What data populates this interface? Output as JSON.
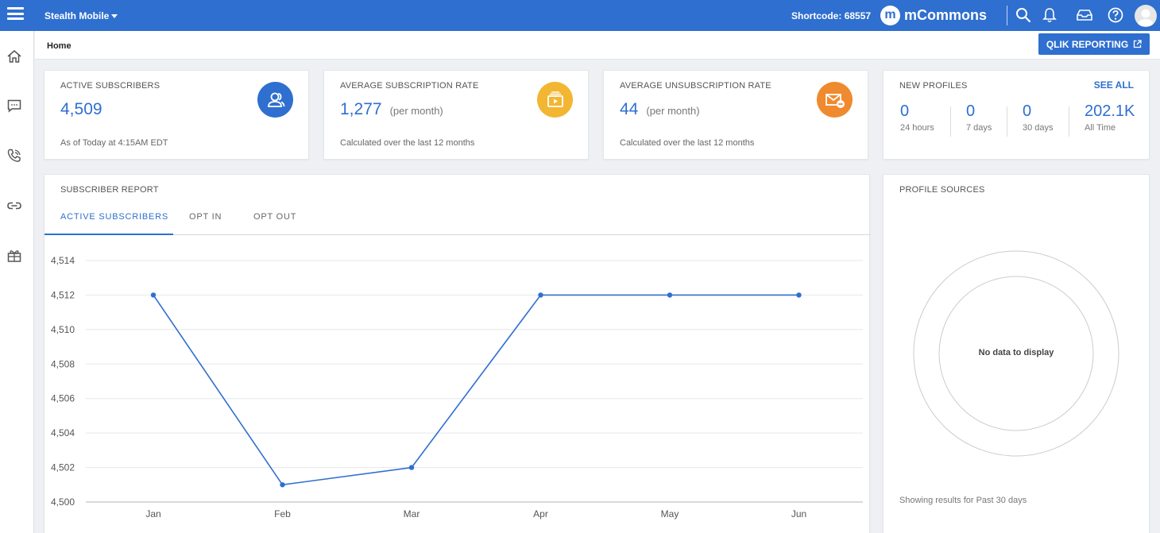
{
  "topbar": {
    "org_name": "Stealth Mobile",
    "shortcode_label": "Shortcode:",
    "shortcode_value": "68557",
    "brand_letter": "m",
    "brand_name": "mCommons",
    "icons": [
      "search-icon",
      "bell-icon",
      "inbox-icon",
      "help-icon",
      "avatar"
    ]
  },
  "sidebar": {
    "items": [
      "home-icon",
      "message-icon",
      "phone-icon",
      "link-icon",
      "gift-icon"
    ]
  },
  "breadcrumb": {
    "current": "Home",
    "qlik_button": "QLIK REPORTING"
  },
  "stats": {
    "active_subscribers": {
      "title": "ACTIVE SUBSCRIBERS",
      "value": "4,509",
      "note": "As of Today at 4:15AM EDT"
    },
    "avg_subscription": {
      "title": "AVERAGE SUBSCRIPTION RATE",
      "value": "1,277",
      "unit": "(per month)",
      "note": "Calculated over the last 12 months"
    },
    "avg_unsubscription": {
      "title": "AVERAGE UNSUBSCRIPTION RATE",
      "value": "44",
      "unit": "(per month)",
      "note": "Calculated over the last 12 months"
    },
    "new_profiles": {
      "title": "NEW PROFILES",
      "see_all": "SEE ALL",
      "columns": [
        {
          "value": "0",
          "label": "24 hours"
        },
        {
          "value": "0",
          "label": "7 days"
        },
        {
          "value": "0",
          "label": "30 days"
        },
        {
          "value": "202.1K",
          "label": "All Time"
        }
      ]
    }
  },
  "report": {
    "title": "SUBSCRIBER REPORT",
    "tabs": [
      "ACTIVE SUBSCRIBERS",
      "OPT IN",
      "OPT OUT"
    ],
    "active_tab": 0
  },
  "profile_sources": {
    "title": "PROFILE SOURCES",
    "empty_text": "No data to display",
    "footer": "Showing results for Past 30 days"
  },
  "colors": {
    "brand_blue": "#2f6fcf",
    "icon_blue": "#2f6fcf",
    "icon_yellow": "#f2b632",
    "icon_orange": "#f08a2e"
  },
  "chart_data": {
    "type": "line",
    "categories": [
      "Jan",
      "Feb",
      "Mar",
      "Apr",
      "May",
      "Jun"
    ],
    "values": [
      4512,
      4501,
      4502,
      4512,
      4512,
      4512
    ],
    "ylim": [
      4500,
      4514
    ],
    "yticks": [
      "4,500",
      "4,502",
      "4,504",
      "4,506",
      "4,508",
      "4,510",
      "4,512",
      "4,514"
    ],
    "grid": true,
    "color": "#2f6fcf"
  }
}
